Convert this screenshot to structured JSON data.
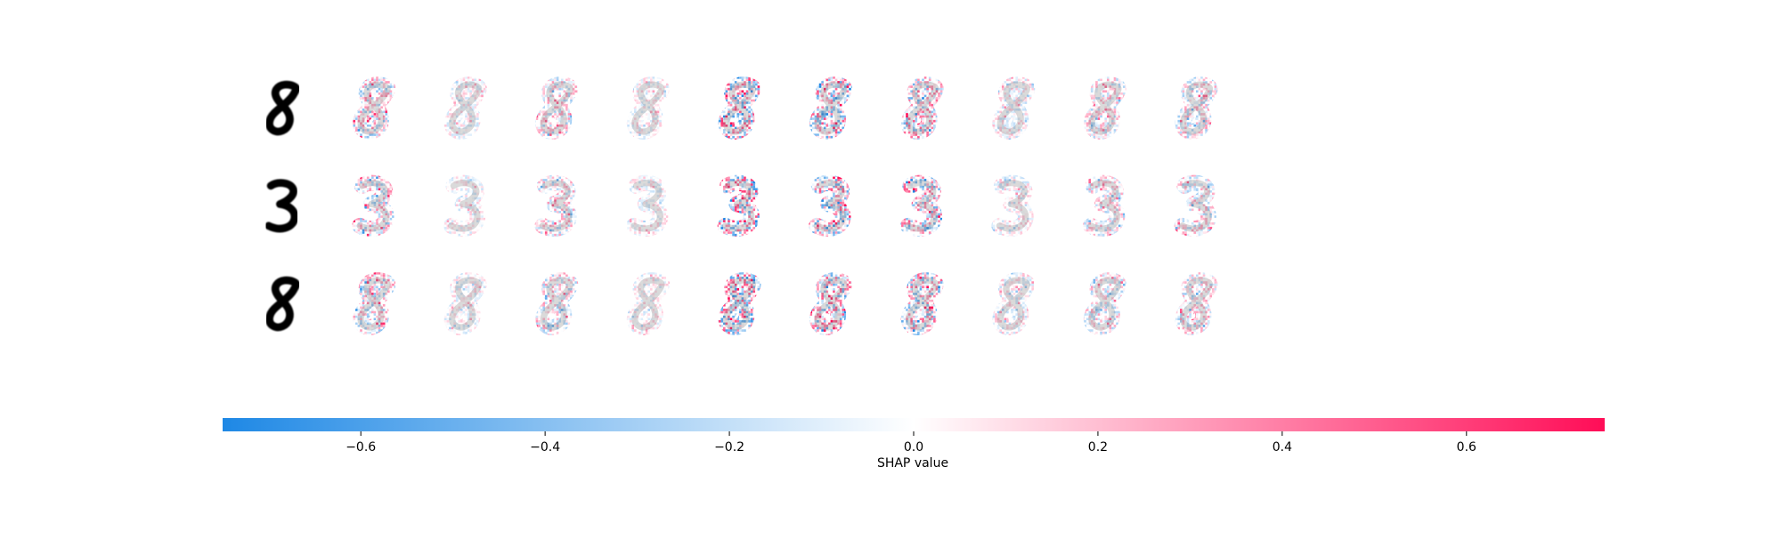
{
  "chart_data": {
    "type": "heatmap",
    "title": "",
    "rows": [
      {
        "digit": "8",
        "explanations": 10
      },
      {
        "digit": "3",
        "explanations": 10
      },
      {
        "digit": "8",
        "explanations": 10
      }
    ],
    "colorbar": {
      "label": "SHAP value",
      "range": [
        -0.75,
        0.75
      ],
      "ticks": [
        -0.6,
        -0.4,
        -0.2,
        0.0,
        0.2,
        0.4,
        0.6
      ],
      "tick_labels": [
        "−0.6",
        "−0.4",
        "−0.2",
        "0.0",
        "0.2",
        "0.4",
        "0.6"
      ],
      "negative_color": "#1E88E5",
      "neutral_color": "#FFFFFF",
      "positive_color": "#FF0D57"
    }
  }
}
